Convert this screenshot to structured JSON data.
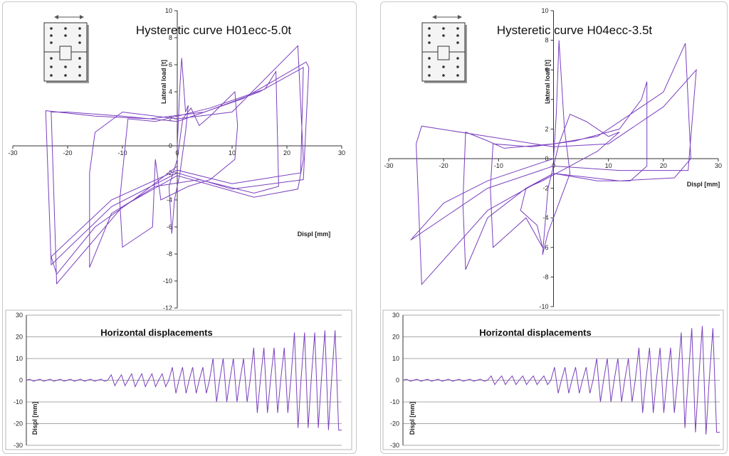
{
  "chart_data": [
    {
      "type": "line",
      "title": "Hysteretic curve H01ecc-5.0t",
      "xlabel": "Displ [mm]",
      "ylabel": "Lateral load [t]",
      "xlim": [
        -30,
        30
      ],
      "ylim": [
        -12,
        10
      ],
      "xticks": [
        -30,
        -20,
        -10,
        0,
        10,
        20,
        30
      ],
      "yticks": [
        -12,
        -10,
        -8,
        -6,
        -4,
        -2,
        0,
        2,
        4,
        6,
        8,
        10
      ],
      "series": [
        {
          "points": [
            [
              0,
              0
            ],
            [
              0.5,
              4.5
            ],
            [
              0.8,
              6.5
            ],
            [
              1.5,
              2.5
            ],
            [
              2,
              3
            ],
            [
              1.5,
              1
            ],
            [
              0.5,
              -2
            ],
            [
              -0.5,
              -4
            ],
            [
              -1,
              -6.5
            ],
            [
              -1.5,
              -3
            ],
            [
              0,
              -1
            ],
            [
              1,
              2
            ],
            [
              2.5,
              2.8
            ],
            [
              4,
              1.5
            ],
            [
              6,
              2.2
            ],
            [
              10.5,
              4
            ],
            [
              11,
              1.5
            ],
            [
              10.5,
              -1
            ],
            [
              6,
              -2.5
            ],
            [
              2,
              -3
            ],
            [
              -3,
              -4
            ],
            [
              -4,
              -1
            ],
            [
              -4.5,
              -6
            ],
            [
              -10,
              -7.5
            ],
            [
              -10.5,
              -4
            ],
            [
              -9,
              2
            ],
            [
              -4,
              1.8
            ],
            [
              0,
              2.2
            ],
            [
              6,
              2.8
            ],
            [
              16,
              4.2
            ],
            [
              18,
              5.5
            ],
            [
              18.5,
              -3
            ],
            [
              14,
              -3.5
            ],
            [
              4,
              -2.5
            ],
            [
              -4,
              -3
            ],
            [
              -12,
              -5
            ],
            [
              -16,
              -9
            ],
            [
              -16,
              -2
            ],
            [
              -15,
              1
            ],
            [
              -10,
              2.5
            ],
            [
              0,
              2
            ],
            [
              10,
              2.5
            ],
            [
              22,
              7.4
            ],
            [
              23,
              -1
            ],
            [
              22,
              -3.2
            ],
            [
              14,
              -3.8
            ],
            [
              0,
              -2.2
            ],
            [
              -10,
              -4.5
            ],
            [
              -22,
              -10.2
            ],
            [
              -23,
              2.5
            ],
            [
              -20,
              2.5
            ],
            [
              -10,
              2.2
            ],
            [
              0,
              1.8
            ],
            [
              12,
              3.5
            ],
            [
              23.5,
              6.2
            ],
            [
              24,
              5.8
            ],
            [
              23,
              -2.5
            ],
            [
              10,
              -3.2
            ],
            [
              0,
              -2
            ],
            [
              -12,
              -4.5
            ],
            [
              -23,
              -8.8
            ],
            [
              -24,
              2.6
            ],
            [
              -15,
              2.2
            ],
            [
              -5,
              2
            ],
            [
              5,
              2.5
            ],
            [
              15,
              4
            ],
            [
              23,
              5.8
            ],
            [
              22.5,
              -2
            ],
            [
              10,
              -2.8
            ],
            [
              0,
              -1.8
            ],
            [
              -12,
              -4
            ],
            [
              -23,
              -8.2
            ],
            [
              -22,
              -9.5
            ],
            [
              -15,
              -6
            ],
            [
              -8,
              -4
            ],
            [
              0,
              -1.5
            ]
          ]
        }
      ]
    },
    {
      "type": "line",
      "title": "Horizontal displacements",
      "xlabel": "",
      "ylabel": "Displ [mm]",
      "ylim": [
        -30,
        30
      ],
      "yticks": [
        -30,
        -20,
        -10,
        0,
        10,
        20,
        30
      ],
      "series": [
        {
          "amplitudes": [
            0.5,
            0.5,
            0.5,
            0.5,
            0.5,
            0.5,
            0.5,
            0.5,
            2.5,
            2.5,
            3,
            3,
            3,
            3,
            6,
            6,
            6,
            6,
            10,
            10,
            10,
            10,
            15,
            15,
            15,
            15,
            22,
            22,
            22,
            23,
            23
          ]
        }
      ]
    },
    {
      "type": "line",
      "title": "Hysteretic curve H04ecc-3.5t",
      "xlabel": "Displ [mm]",
      "ylabel": "Lateral load [t]",
      "xlim": [
        -30,
        30
      ],
      "ylim": [
        -10,
        10
      ],
      "xticks": [
        -30,
        -20,
        -10,
        0,
        10,
        20,
        30
      ],
      "yticks": [
        -10,
        -8,
        -6,
        -4,
        -2,
        0,
        2,
        4,
        6,
        8,
        10
      ],
      "series": [
        {
          "points": [
            [
              0,
              0
            ],
            [
              0.5,
              3
            ],
            [
              1,
              8
            ],
            [
              2,
              2
            ],
            [
              3,
              -1
            ],
            [
              1,
              -3
            ],
            [
              -1,
              -5
            ],
            [
              -2,
              -6.5
            ],
            [
              -1,
              -2
            ],
            [
              1,
              1
            ],
            [
              3,
              3
            ],
            [
              6,
              2.5
            ],
            [
              10,
              1.5
            ],
            [
              12,
              1.8
            ],
            [
              8,
              0.5
            ],
            [
              3,
              -0.5
            ],
            [
              -2,
              -1.5
            ],
            [
              -5,
              -2
            ],
            [
              -6,
              -3.5
            ],
            [
              -3,
              -4.5
            ],
            [
              -2,
              -6
            ],
            [
              -5,
              -4
            ],
            [
              -8,
              -5
            ],
            [
              -11,
              -6
            ],
            [
              -11.5,
              -2
            ],
            [
              -11,
              1
            ],
            [
              -4,
              0.8
            ],
            [
              0,
              1
            ],
            [
              4,
              1.2
            ],
            [
              12,
              2
            ],
            [
              16,
              4
            ],
            [
              17,
              5.2
            ],
            [
              17,
              -0.5
            ],
            [
              14,
              -1.5
            ],
            [
              8,
              -1.5
            ],
            [
              0,
              -1
            ],
            [
              -5,
              -2
            ],
            [
              -12,
              -4
            ],
            [
              -16,
              -7.5
            ],
            [
              -16.5,
              -3
            ],
            [
              -16,
              1.8
            ],
            [
              -12,
              1.2
            ],
            [
              -9,
              0.7
            ],
            [
              0,
              1
            ],
            [
              8,
              1.5
            ],
            [
              16,
              3.5
            ],
            [
              20,
              4.5
            ],
            [
              24,
              7.8
            ],
            [
              25,
              0
            ],
            [
              22,
              -1.3
            ],
            [
              12,
              -1.5
            ],
            [
              0,
              -1
            ],
            [
              -12,
              -3.5
            ],
            [
              -24,
              -8.5
            ],
            [
              -25,
              1
            ],
            [
              -24,
              2.2
            ],
            [
              -12,
              1.5
            ],
            [
              0,
              0.8
            ],
            [
              10,
              1
            ],
            [
              20,
              3.5
            ],
            [
              26,
              6
            ],
            [
              24.5,
              -0.8
            ],
            [
              12,
              -0.8
            ],
            [
              0,
              -0.5
            ],
            [
              -12,
              -2
            ],
            [
              -26,
              -5.5
            ],
            [
              -20,
              -3
            ],
            [
              -12,
              -1.5
            ],
            [
              0,
              0
            ]
          ]
        }
      ]
    },
    {
      "type": "line",
      "title": "Horizontal displacements",
      "xlabel": "",
      "ylabel": "Displ [mm]",
      "ylim": [
        -30,
        30
      ],
      "yticks": [
        -30,
        -20,
        -10,
        0,
        10,
        20,
        30
      ],
      "series": [
        {
          "amplitudes": [
            0.5,
            0.5,
            0.5,
            0.5,
            0.5,
            0.5,
            0.5,
            0.5,
            2,
            2,
            2,
            2,
            2,
            2,
            6,
            6,
            6,
            6,
            10,
            10,
            10,
            10,
            15,
            15,
            15,
            15,
            22,
            24,
            25,
            24
          ]
        }
      ]
    }
  ],
  "colors": {
    "series": "#7a3fbf",
    "grid": "#8a8a8a",
    "axis": "#333333"
  }
}
